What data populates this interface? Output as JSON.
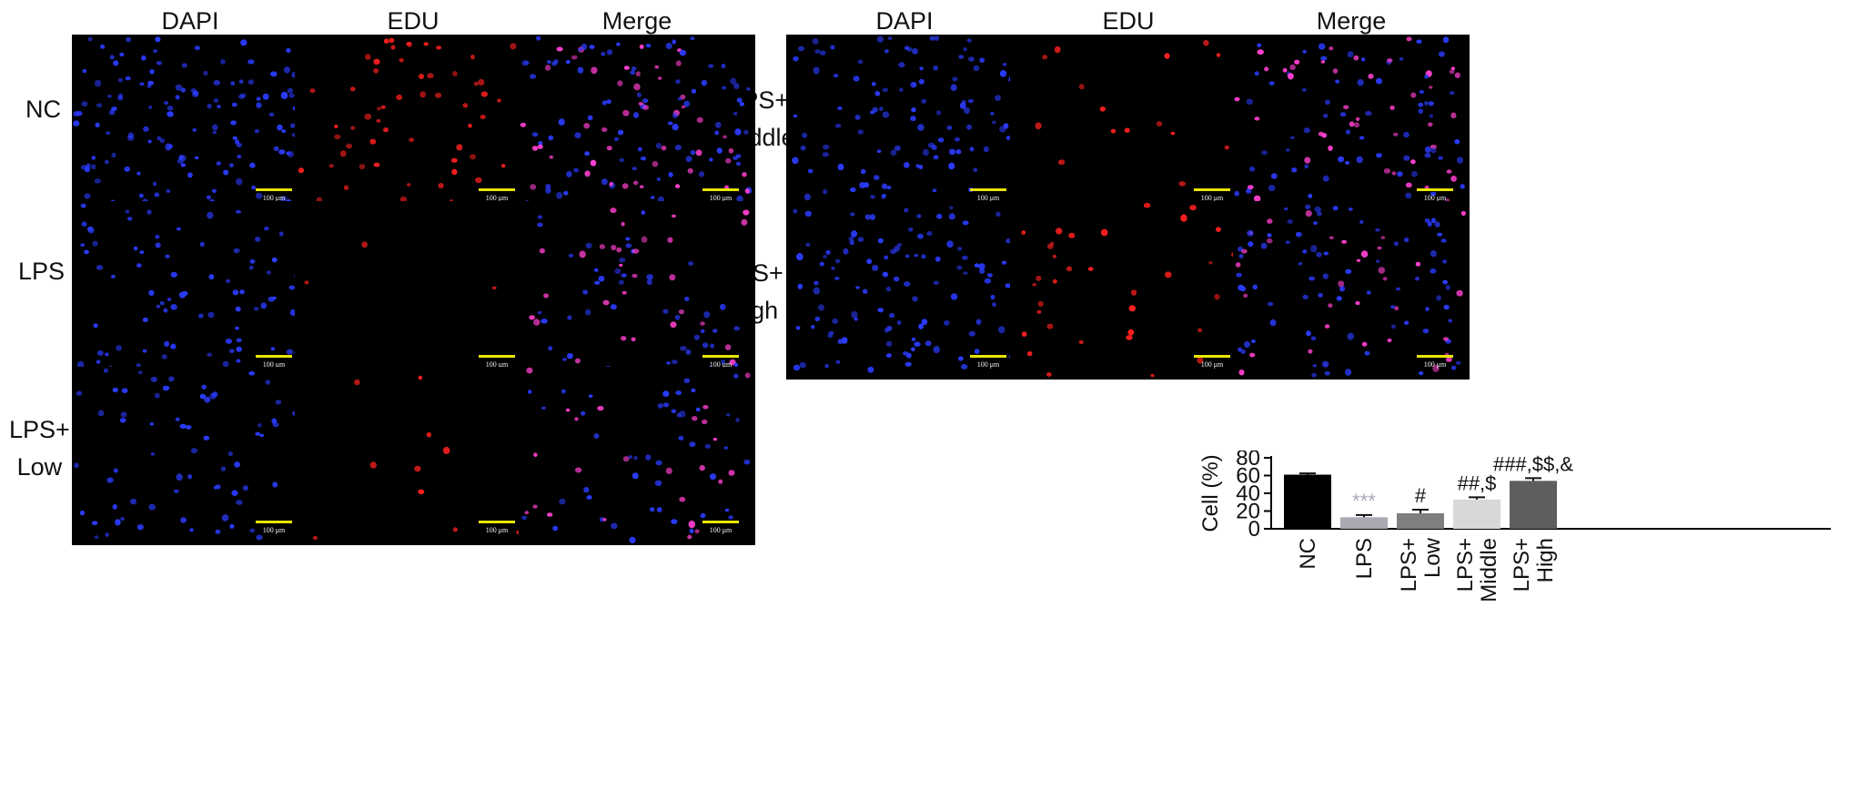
{
  "column_headers": {
    "left": [
      "DAPI",
      "EDU",
      "Merge"
    ],
    "right": [
      "DAPI",
      "EDU",
      "Merge"
    ]
  },
  "row_labels": {
    "nc": "NC",
    "lps": "LPS",
    "lps_low": "LPS+\nLow",
    "lps_middle": "LPS+\nMiddle",
    "lps_high": "LPS+\nHigh"
  },
  "scale_bar_label": "100 μm",
  "colors": {
    "dapi_nucleus": "#2b3cff",
    "edu_nucleus": "#ff2020",
    "merge_nucleus": "#ff40d0",
    "scale_bar": "#e8e600",
    "panel_background": "#000000"
  },
  "micrographs": [
    {
      "group": "NC",
      "channel": "DAPI",
      "nuclei": 140
    },
    {
      "group": "NC",
      "channel": "EDU",
      "nuclei": 60
    },
    {
      "group": "NC",
      "channel": "Merge",
      "nuclei": 140
    },
    {
      "group": "LPS",
      "channel": "DAPI",
      "nuclei": 80
    },
    {
      "group": "LPS",
      "channel": "EDU",
      "nuclei": 3
    },
    {
      "group": "LPS",
      "channel": "Merge",
      "nuclei": 80
    },
    {
      "group": "LPS+ Low",
      "channel": "DAPI",
      "nuclei": 70
    },
    {
      "group": "LPS+ Low",
      "channel": "EDU",
      "nuclei": 10
    },
    {
      "group": "LPS+ Low",
      "channel": "Merge",
      "nuclei": 70
    },
    {
      "group": "LPS+ Middle",
      "channel": "DAPI",
      "nuclei": 110
    },
    {
      "group": "LPS+ Middle",
      "channel": "EDU",
      "nuclei": 15
    },
    {
      "group": "LPS+ Middle",
      "channel": "Merge",
      "nuclei": 110
    },
    {
      "group": "LPS+ High",
      "channel": "DAPI",
      "nuclei": 110
    },
    {
      "group": "LPS+ High",
      "channel": "EDU",
      "nuclei": 35
    },
    {
      "group": "LPS+ High",
      "channel": "Merge",
      "nuclei": 110
    }
  ],
  "chart_data": {
    "type": "bar",
    "categories": [
      "NC",
      "LPS",
      "LPS+\nLow",
      "LPS+\nMiddle",
      "LPS+\nHigh"
    ],
    "values": [
      61,
      13,
      17.5,
      33,
      54
    ],
    "errors": [
      1.5,
      2.5,
      4,
      2.5,
      3
    ],
    "bar_colors": [
      "#000000",
      "#a9a9b4",
      "#7f7f7f",
      "#d8d8d8",
      "#5e5e5e"
    ],
    "annotations": [
      "",
      "***",
      "#",
      "##,$",
      "###,$$,&"
    ],
    "annotation_colors": [
      "#111111",
      "#a9a9b4",
      "#111111",
      "#111111",
      "#111111"
    ],
    "ylabel": "Cell (%)",
    "xlabel": "",
    "ylim": [
      0,
      80
    ],
    "yticks": [
      0,
      20,
      40,
      60,
      80
    ],
    "grid": false,
    "legend": "none"
  }
}
